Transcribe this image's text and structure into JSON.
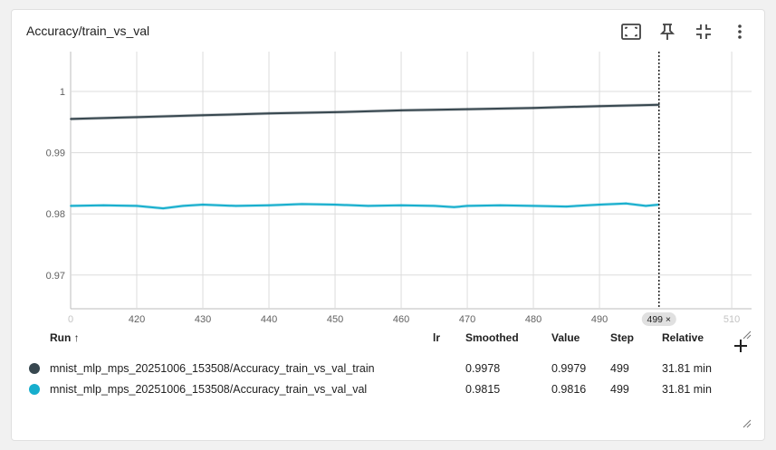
{
  "card": {
    "title": "Accuracy/train_vs_val"
  },
  "toolbar": {
    "icons": [
      "fit-to-data-icon",
      "pin-icon",
      "collapse-icon",
      "more-vert-icon"
    ]
  },
  "table": {
    "headers": {
      "run": "Run ↑",
      "lr": "lr",
      "smoothed": "Smoothed",
      "value": "Value",
      "step": "Step",
      "relative": "Relative"
    },
    "rows": [
      {
        "run": "mnist_mlp_mps_20251006_153508/Accuracy_train_vs_val_train",
        "color": "#37474f",
        "lr": "",
        "smoothed": "0.9978",
        "value": "0.9979",
        "step": "499",
        "relative": "31.81 min"
      },
      {
        "run": "mnist_mlp_mps_20251006_153508/Accuracy_train_vs_val_val",
        "color": "#17aecd",
        "lr": "",
        "smoothed": "0.9815",
        "value": "0.9816",
        "step": "499",
        "relative": "31.81 min"
      }
    ]
  },
  "chart_data": {
    "type": "line",
    "xlim": [
      410,
      513
    ],
    "ylim": [
      0.9645,
      1.0065
    ],
    "x_ticks": [
      "0",
      "420",
      "430",
      "440",
      "450",
      "460",
      "470",
      "480",
      "490",
      "510"
    ],
    "y_ticks": [
      "0.97",
      "0.98",
      "0.99",
      "1"
    ],
    "grid": true,
    "cursor": {
      "step": 499,
      "label": "499 ×"
    },
    "series": [
      {
        "name": "mnist_mlp_mps_20251006_153508/Accuracy_train_vs_val_train",
        "color": "#37474f",
        "x": [
          410,
          420,
          430,
          440,
          450,
          460,
          470,
          480,
          490,
          499
        ],
        "y": [
          0.9955,
          0.9958,
          0.9961,
          0.9964,
          0.9966,
          0.9969,
          0.9971,
          0.9973,
          0.9976,
          0.9978
        ]
      },
      {
        "name": "mnist_mlp_mps_20251006_153508/Accuracy_train_vs_val_val",
        "color": "#17aecd",
        "x": [
          410,
          415,
          420,
          424,
          427,
          430,
          435,
          440,
          445,
          450,
          455,
          460,
          465,
          468,
          470,
          475,
          480,
          485,
          490,
          494,
          497,
          499
        ],
        "y": [
          0.9813,
          0.9814,
          0.9813,
          0.9809,
          0.9813,
          0.9815,
          0.9813,
          0.9814,
          0.9816,
          0.9815,
          0.9813,
          0.9814,
          0.9813,
          0.9811,
          0.9813,
          0.9814,
          0.9813,
          0.9812,
          0.9815,
          0.9817,
          0.9813,
          0.9815
        ]
      }
    ]
  }
}
